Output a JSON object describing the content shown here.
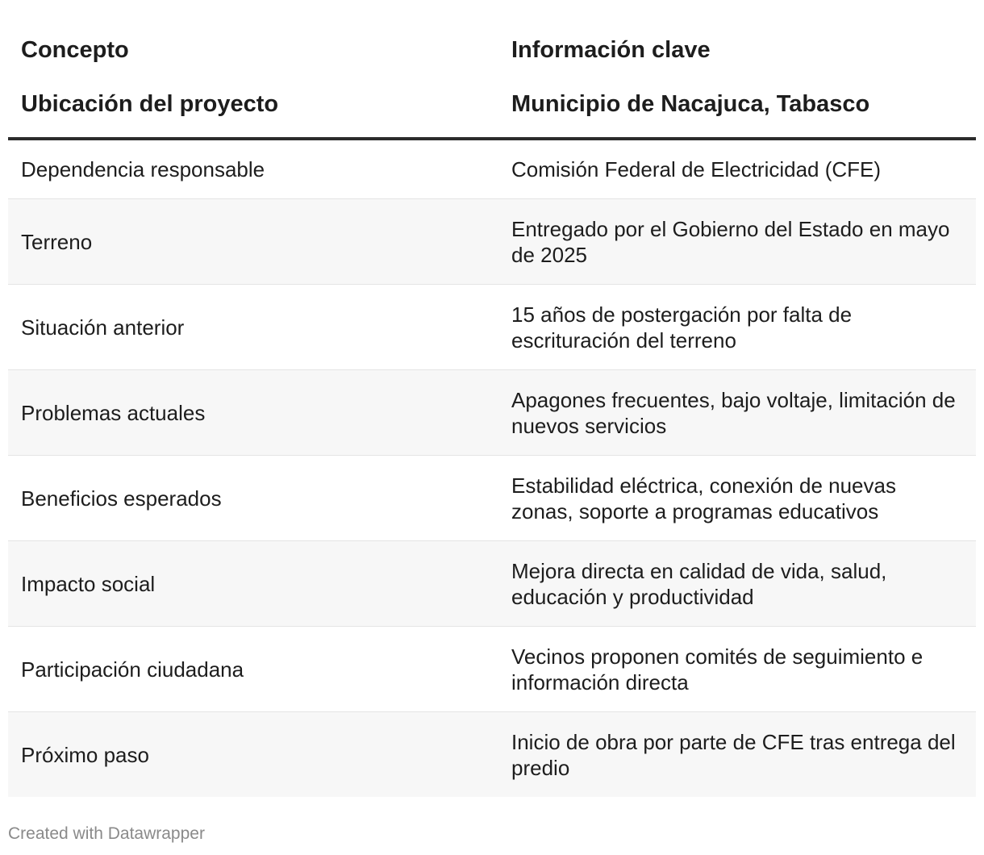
{
  "chart_data": {
    "type": "table",
    "columns": [
      "Concepto",
      "Información clave"
    ],
    "header_rows": [
      [
        "Ubicación del proyecto",
        "Municipio de Nacajuca, Tabasco"
      ]
    ],
    "rows": [
      [
        "Dependencia responsable",
        "Comisión Federal de Electricidad (CFE)"
      ],
      [
        "Terreno",
        "Entregado por el Gobierno del Estado en mayo de 2025"
      ],
      [
        "Situación anterior",
        "15 años de postergación por falta de escrituración del terreno"
      ],
      [
        "Problemas actuales",
        "Apagones frecuentes, bajo voltaje, limitación de nuevos servicios"
      ],
      [
        "Beneficios esperados",
        "Estabilidad eléctrica, conexión de nuevas zonas, soporte a programas educativos"
      ],
      [
        "Impacto social",
        "Mejora directa en calidad de vida, salud, educación y productividad"
      ],
      [
        "Participación ciudadana",
        "Vecinos proponen comités de seguimiento e información directa"
      ],
      [
        "Próximo paso",
        "Inicio de obra por parte de CFE tras entrega del predio"
      ]
    ]
  },
  "footer": {
    "credit": "Created with Datawrapper"
  },
  "colors": {
    "stripe": "#f7f7f7",
    "header_rule": "#2b2b2b",
    "row_rule": "#e4e4e4",
    "credit_text": "#8a8a8a"
  }
}
